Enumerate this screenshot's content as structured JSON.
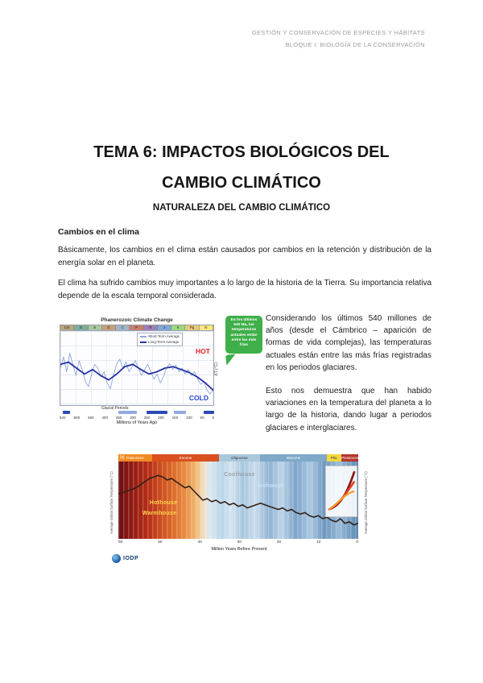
{
  "header": {
    "line1": "GESTIÓN Y CONSERVACIÓN DE ESPECIES Y HÁBITATS",
    "line2": "BLOQUE I: BIOLOGÍA DE LA CONSERVACIÓN"
  },
  "title": {
    "line1": "TEMA 6: IMPACTOS BIOLÓGICOS DEL",
    "line2": "CAMBIO CLIMÁTICO"
  },
  "subtitle": "NATURALEZA DEL CAMBIO CLIMÁTICO",
  "body": {
    "heading1": "Cambios en el clima",
    "para1": "Básicamente, los cambios en el clima están causados por cambios en la retención y distribución de la energía solar en el planeta.",
    "para2": "El clima ha sufrido cambios muy importantes a lo largo de la historia de la Tierra. Su importancia relativa depende de la escala temporal considerada.",
    "para3": "Considerando los últimos 540 millones de años (desde el Cámbrico – aparición de formas de vida complejas), las temperaturas actuales están entre las más frías registradas en los periodos glaciares.",
    "para4": "Esto nos demuestra que han habido variaciones en la temperatura del planeta a lo largo de la historia, dando lugar a periodos glaciares e interglaciares."
  },
  "figure1": {
    "title": "Phanerozoic Climate Change",
    "periods": [
      "Cm",
      "O",
      "S",
      "D",
      "C",
      "P",
      "Tr",
      "J",
      "K",
      "Pg",
      "N"
    ],
    "period_colors": [
      "#b8a77c",
      "#7fae9c",
      "#a8c8a0",
      "#c8a078",
      "#9fb8c8",
      "#c87f6f",
      "#9f7fb8",
      "#7fa8d8",
      "#9fd87f",
      "#e8c87f",
      "#f8e87f"
    ],
    "legend": [
      {
        "label": "Short-Term Average",
        "color": "#8fa6dd"
      },
      {
        "label": "Long-Term Average",
        "color": "#24339f"
      }
    ],
    "hot_label": "HOT",
    "hot_color": "#e02222",
    "cold_label": "COLD",
    "cold_color": "#2a46c8",
    "right_axis_label": "ΔT (°C)",
    "glacial_label": "Glacial Periods",
    "xticks": [
      "542",
      "500",
      "450",
      "400",
      "350",
      "300",
      "250",
      "200",
      "150",
      "100",
      "50",
      "0"
    ],
    "xlabel": "Millions of Years Ago",
    "glacial_bars": [
      [
        0.02,
        0.05
      ],
      [
        0.38,
        0.12
      ],
      [
        0.56,
        0.14
      ],
      [
        0.74,
        0.08
      ],
      [
        0.93,
        0.07
      ]
    ],
    "short_term": [
      0.5,
      0.35,
      0.55,
      0.3,
      0.45,
      0.6,
      0.4,
      0.52,
      0.68,
      0.75,
      0.58,
      0.45,
      0.5,
      0.62,
      0.55,
      0.7,
      0.78,
      0.6,
      0.45,
      0.38,
      0.5,
      0.42,
      0.55,
      0.48,
      0.4,
      0.5,
      0.6,
      0.52,
      0.45,
      0.55,
      0.65,
      0.58,
      0.7,
      0.62,
      0.5,
      0.44,
      0.52,
      0.46,
      0.55,
      0.5,
      0.58,
      0.52,
      0.6,
      0.55,
      0.65,
      0.72,
      0.68,
      0.8,
      0.85,
      0.78
    ],
    "long_term": [
      0.45,
      0.42,
      0.5,
      0.58,
      0.52,
      0.6,
      0.66,
      0.58,
      0.48,
      0.45,
      0.52,
      0.58,
      0.55,
      0.5,
      0.48,
      0.52,
      0.56,
      0.62,
      0.7,
      0.8
    ],
    "callout": "En los últimos 540 Ma, las temperaturas actuales están entre las más frías",
    "callout_color": "#3faf49"
  },
  "figure2": {
    "corner_label": "[a]",
    "epochs": [
      {
        "label": "Paleocene",
        "color": "#f08a24",
        "text": "#ffffff",
        "w": 14
      },
      {
        "label": "Eocene",
        "color": "#d94f1e",
        "text": "#ffffff",
        "w": 28
      },
      {
        "label": "Oligocene",
        "color": "#aac8dc",
        "text": "#333333",
        "w": 17
      },
      {
        "label": "Miocene",
        "color": "#7fa8c9",
        "text": "#ffffff",
        "w": 28
      },
      {
        "label": "Plio.",
        "color": "#f3d93c",
        "text": "#333333",
        "w": 6
      },
      {
        "label": "Pleistocene",
        "color": "#b5372a",
        "text": "#ffffff",
        "w": 7
      }
    ],
    "zone_labels": [
      {
        "label": "Hothouse",
        "color": "#ffd84d"
      },
      {
        "label": "Warmhouse",
        "color": "#ffd84d"
      },
      {
        "label": "Coolhouse",
        "color": "#9aa2ac"
      },
      {
        "label": "Icehouse",
        "color": "#cfe4f6"
      }
    ],
    "left_axis_label": "Average Global Surface Temperature (°C)",
    "right_axis_label": "Average Global Surface Temperature (°C)",
    "xticks": [
      "60",
      "50",
      "40",
      "30",
      "20",
      "10",
      "0"
    ],
    "xlabel": "Million Years Before Present",
    "temp_line": [
      0.42,
      0.4,
      0.38,
      0.36,
      0.34,
      0.3,
      0.26,
      0.22,
      0.2,
      0.18,
      0.2,
      0.24,
      0.22,
      0.26,
      0.3,
      0.34,
      0.32,
      0.38,
      0.44,
      0.5,
      0.48,
      0.52,
      0.5,
      0.54,
      0.52,
      0.56,
      0.54,
      0.58,
      0.56,
      0.6,
      0.58,
      0.56,
      0.54,
      0.56,
      0.58,
      0.6,
      0.62,
      0.6,
      0.64,
      0.62,
      0.66,
      0.68,
      0.66,
      0.7,
      0.72,
      0.7,
      0.74,
      0.72,
      0.76,
      0.78,
      0.74,
      0.8,
      0.78,
      0.82,
      0.8
    ],
    "line_color": "#32221a",
    "logo_text": "IODP"
  }
}
